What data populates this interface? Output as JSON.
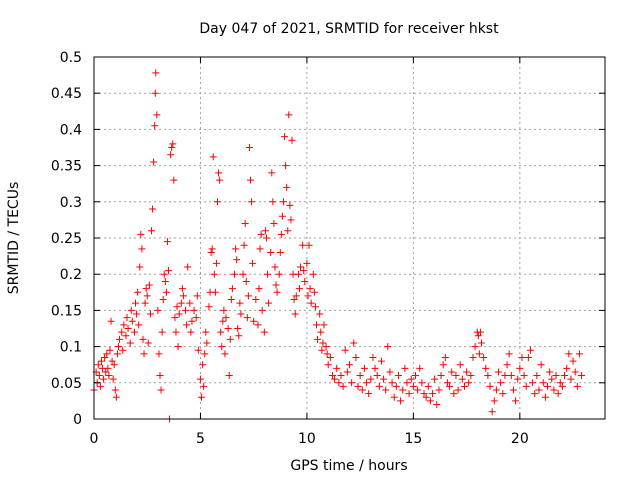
{
  "chart_data": {
    "type": "scatter",
    "title": "Day 047 of 2021, SRMTID for receiver hkst",
    "xlabel": "GPS time / hours",
    "ylabel": "SRMTID / TECUs",
    "xlim": [
      0,
      24
    ],
    "ylim": [
      0,
      0.5
    ],
    "xticks": [
      0,
      5,
      10,
      15,
      20
    ],
    "yticks": [
      0,
      0.05,
      0.1,
      0.15,
      0.2,
      0.25,
      0.3,
      0.35,
      0.4,
      0.45,
      0.5
    ],
    "grid": true,
    "marker": "+",
    "color": "#ff0000",
    "series": [
      {
        "name": "SRMTID",
        "points": [
          [
            0.0,
            0.04
          ],
          [
            0.1,
            0.065
          ],
          [
            0.15,
            0.05
          ],
          [
            0.2,
            0.075
          ],
          [
            0.25,
            0.06
          ],
          [
            0.3,
            0.045
          ],
          [
            0.35,
            0.08
          ],
          [
            0.4,
            0.07
          ],
          [
            0.45,
            0.055
          ],
          [
            0.5,
            0.085
          ],
          [
            0.55,
            0.065
          ],
          [
            0.6,
            0.09
          ],
          [
            0.65,
            0.07
          ],
          [
            0.7,
            0.06
          ],
          [
            0.75,
            0.095
          ],
          [
            0.8,
            0.135
          ],
          [
            0.85,
            0.08
          ],
          [
            0.9,
            0.055
          ],
          [
            0.95,
            0.075
          ],
          [
            1.0,
            0.04
          ],
          [
            1.05,
            0.03
          ],
          [
            1.1,
            0.09
          ],
          [
            1.15,
            0.1
          ],
          [
            1.2,
            0.11
          ],
          [
            1.3,
            0.12
          ],
          [
            1.35,
            0.095
          ],
          [
            1.4,
            0.13
          ],
          [
            1.5,
            0.115
          ],
          [
            1.55,
            0.14
          ],
          [
            1.6,
            0.125
          ],
          [
            1.7,
            0.105
          ],
          [
            1.75,
            0.15
          ],
          [
            1.8,
            0.135
          ],
          [
            1.9,
            0.12
          ],
          [
            1.95,
            0.16
          ],
          [
            2.0,
            0.145
          ],
          [
            2.05,
            0.175
          ],
          [
            2.1,
            0.13
          ],
          [
            2.15,
            0.21
          ],
          [
            2.2,
            0.255
          ],
          [
            2.25,
            0.235
          ],
          [
            2.3,
            0.11
          ],
          [
            2.35,
            0.09
          ],
          [
            2.4,
            0.16
          ],
          [
            2.45,
            0.18
          ],
          [
            2.5,
            0.17
          ],
          [
            2.55,
            0.105
          ],
          [
            2.6,
            0.185
          ],
          [
            2.65,
            0.145
          ],
          [
            2.7,
            0.26
          ],
          [
            2.75,
            0.29
          ],
          [
            2.8,
            0.355
          ],
          [
            2.85,
            0.405
          ],
          [
            2.88,
            0.45
          ],
          [
            2.9,
            0.478
          ],
          [
            2.95,
            0.42
          ],
          [
            3.0,
            0.15
          ],
          [
            3.05,
            0.09
          ],
          [
            3.1,
            0.06
          ],
          [
            3.15,
            0.04
          ],
          [
            3.2,
            0.12
          ],
          [
            3.25,
            0.165
          ],
          [
            3.3,
            0.2
          ],
          [
            3.35,
            0.19
          ],
          [
            3.4,
            0.175
          ],
          [
            3.45,
            0.245
          ],
          [
            3.5,
            0.205
          ],
          [
            3.55,
            0.0
          ],
          [
            3.6,
            0.365
          ],
          [
            3.65,
            0.375
          ],
          [
            3.7,
            0.38
          ],
          [
            3.75,
            0.33
          ],
          [
            3.8,
            0.14
          ],
          [
            3.85,
            0.12
          ],
          [
            3.9,
            0.155
          ],
          [
            3.95,
            0.1
          ],
          [
            4.0,
            0.145
          ],
          [
            4.1,
            0.16
          ],
          [
            4.15,
            0.18
          ],
          [
            4.2,
            0.17
          ],
          [
            4.3,
            0.15
          ],
          [
            4.35,
            0.13
          ],
          [
            4.4,
            0.21
          ],
          [
            4.5,
            0.16
          ],
          [
            4.55,
            0.12
          ],
          [
            4.6,
            0.135
          ],
          [
            4.7,
            0.15
          ],
          [
            4.8,
            0.14
          ],
          [
            4.85,
            0.17
          ],
          [
            4.9,
            0.095
          ],
          [
            5.0,
            0.055
          ],
          [
            5.05,
            0.03
          ],
          [
            5.1,
            0.075
          ],
          [
            5.15,
            0.045
          ],
          [
            5.2,
            0.09
          ],
          [
            5.25,
            0.12
          ],
          [
            5.3,
            0.105
          ],
          [
            5.4,
            0.155
          ],
          [
            5.45,
            0.175
          ],
          [
            5.5,
            0.23
          ],
          [
            5.55,
            0.235
          ],
          [
            5.6,
            0.362
          ],
          [
            5.65,
            0.2
          ],
          [
            5.7,
            0.175
          ],
          [
            5.75,
            0.215
          ],
          [
            5.8,
            0.3
          ],
          [
            5.85,
            0.34
          ],
          [
            5.9,
            0.33
          ],
          [
            5.95,
            0.12
          ],
          [
            6.0,
            0.1
          ],
          [
            6.05,
            0.135
          ],
          [
            6.1,
            0.15
          ],
          [
            6.15,
            0.09
          ],
          [
            6.2,
            0.14
          ],
          [
            6.3,
            0.125
          ],
          [
            6.35,
            0.06
          ],
          [
            6.4,
            0.11
          ],
          [
            6.45,
            0.165
          ],
          [
            6.5,
            0.18
          ],
          [
            6.6,
            0.2
          ],
          [
            6.65,
            0.235
          ],
          [
            6.7,
            0.22
          ],
          [
            6.75,
            0.125
          ],
          [
            6.8,
            0.115
          ],
          [
            6.85,
            0.16
          ],
          [
            6.9,
            0.145
          ],
          [
            7.0,
            0.2
          ],
          [
            7.05,
            0.24
          ],
          [
            7.1,
            0.27
          ],
          [
            7.15,
            0.19
          ],
          [
            7.2,
            0.14
          ],
          [
            7.25,
            0.17
          ],
          [
            7.3,
            0.375
          ],
          [
            7.35,
            0.33
          ],
          [
            7.4,
            0.3
          ],
          [
            7.45,
            0.215
          ],
          [
            7.5,
            0.135
          ],
          [
            7.6,
            0.165
          ],
          [
            7.7,
            0.13
          ],
          [
            7.75,
            0.18
          ],
          [
            7.8,
            0.235
          ],
          [
            7.85,
            0.255
          ],
          [
            7.9,
            0.15
          ],
          [
            8.0,
            0.12
          ],
          [
            8.05,
            0.26
          ],
          [
            8.1,
            0.25
          ],
          [
            8.15,
            0.2
          ],
          [
            8.2,
            0.16
          ],
          [
            8.3,
            0.23
          ],
          [
            8.35,
            0.34
          ],
          [
            8.4,
            0.3
          ],
          [
            8.45,
            0.27
          ],
          [
            8.5,
            0.21
          ],
          [
            8.55,
            0.185
          ],
          [
            8.6,
            0.175
          ],
          [
            8.7,
            0.2
          ],
          [
            8.75,
            0.23
          ],
          [
            8.8,
            0.255
          ],
          [
            8.85,
            0.28
          ],
          [
            8.9,
            0.3
          ],
          [
            8.95,
            0.39
          ],
          [
            9.0,
            0.35
          ],
          [
            9.05,
            0.32
          ],
          [
            9.1,
            0.26
          ],
          [
            9.15,
            0.42
          ],
          [
            9.2,
            0.295
          ],
          [
            9.25,
            0.275
          ],
          [
            9.3,
            0.385
          ],
          [
            9.35,
            0.2
          ],
          [
            9.4,
            0.165
          ],
          [
            9.45,
            0.145
          ],
          [
            9.5,
            0.17
          ],
          [
            9.6,
            0.2
          ],
          [
            9.65,
            0.18
          ],
          [
            9.7,
            0.21
          ],
          [
            9.8,
            0.24
          ],
          [
            9.85,
            0.205
          ],
          [
            9.9,
            0.19
          ],
          [
            10.0,
            0.215
          ],
          [
            10.05,
            0.17
          ],
          [
            10.1,
            0.24
          ],
          [
            10.15,
            0.18
          ],
          [
            10.2,
            0.16
          ],
          [
            10.3,
            0.2
          ],
          [
            10.35,
            0.175
          ],
          [
            10.4,
            0.155
          ],
          [
            10.45,
            0.13
          ],
          [
            10.5,
            0.11
          ],
          [
            10.6,
            0.145
          ],
          [
            10.65,
            0.12
          ],
          [
            10.7,
            0.095
          ],
          [
            10.75,
            0.105
          ],
          [
            10.8,
            0.13
          ],
          [
            10.9,
            0.1
          ],
          [
            10.95,
            0.09
          ],
          [
            11.0,
            0.075
          ],
          [
            11.1,
            0.085
          ],
          [
            11.2,
            0.06
          ],
          [
            11.3,
            0.055
          ],
          [
            11.4,
            0.07
          ],
          [
            11.5,
            0.05
          ],
          [
            11.6,
            0.06
          ],
          [
            11.7,
            0.045
          ],
          [
            11.8,
            0.095
          ],
          [
            11.9,
            0.065
          ],
          [
            12.0,
            0.075
          ],
          [
            12.1,
            0.05
          ],
          [
            12.2,
            0.105
          ],
          [
            12.3,
            0.085
          ],
          [
            12.4,
            0.045
          ],
          [
            12.5,
            0.06
          ],
          [
            12.6,
            0.04
          ],
          [
            12.7,
            0.07
          ],
          [
            12.8,
            0.05
          ],
          [
            12.9,
            0.035
          ],
          [
            13.0,
            0.055
          ],
          [
            13.1,
            0.085
          ],
          [
            13.2,
            0.07
          ],
          [
            13.3,
            0.06
          ],
          [
            13.4,
            0.045
          ],
          [
            13.5,
            0.08
          ],
          [
            13.6,
            0.055
          ],
          [
            13.7,
            0.04
          ],
          [
            13.8,
            0.1
          ],
          [
            13.9,
            0.065
          ],
          [
            14.0,
            0.05
          ],
          [
            14.1,
            0.03
          ],
          [
            14.2,
            0.045
          ],
          [
            14.3,
            0.06
          ],
          [
            14.4,
            0.025
          ],
          [
            14.5,
            0.04
          ],
          [
            14.6,
            0.07
          ],
          [
            14.7,
            0.05
          ],
          [
            14.8,
            0.035
          ],
          [
            14.9,
            0.055
          ],
          [
            15.0,
            0.045
          ],
          [
            15.1,
            0.06
          ],
          [
            15.2,
            0.04
          ],
          [
            15.3,
            0.07
          ],
          [
            15.4,
            0.05
          ],
          [
            15.5,
            0.035
          ],
          [
            15.6,
            0.03
          ],
          [
            15.7,
            0.045
          ],
          [
            15.8,
            0.025
          ],
          [
            15.9,
            0.035
          ],
          [
            16.0,
            0.055
          ],
          [
            16.1,
            0.02
          ],
          [
            16.2,
            0.04
          ],
          [
            16.3,
            0.06
          ],
          [
            16.4,
            0.075
          ],
          [
            16.5,
            0.085
          ],
          [
            16.6,
            0.05
          ],
          [
            16.7,
            0.045
          ],
          [
            16.8,
            0.065
          ],
          [
            16.9,
            0.035
          ],
          [
            17.0,
            0.06
          ],
          [
            17.1,
            0.04
          ],
          [
            17.2,
            0.075
          ],
          [
            17.3,
            0.055
          ],
          [
            17.4,
            0.045
          ],
          [
            17.5,
            0.065
          ],
          [
            17.6,
            0.05
          ],
          [
            17.7,
            0.06
          ],
          [
            17.8,
            0.085
          ],
          [
            17.9,
            0.1
          ],
          [
            18.0,
            0.12
          ],
          [
            18.05,
            0.115
          ],
          [
            18.1,
            0.09
          ],
          [
            18.15,
            0.12
          ],
          [
            18.2,
            0.105
          ],
          [
            18.3,
            0.085
          ],
          [
            18.4,
            0.07
          ],
          [
            18.5,
            0.06
          ],
          [
            18.6,
            0.045
          ],
          [
            18.7,
            0.01
          ],
          [
            18.8,
            0.025
          ],
          [
            18.9,
            0.04
          ],
          [
            19.0,
            0.065
          ],
          [
            19.1,
            0.05
          ],
          [
            19.2,
            0.035
          ],
          [
            19.3,
            0.06
          ],
          [
            19.4,
            0.075
          ],
          [
            19.5,
            0.09
          ],
          [
            19.6,
            0.06
          ],
          [
            19.7,
            0.04
          ],
          [
            19.8,
            0.025
          ],
          [
            19.9,
            0.055
          ],
          [
            20.0,
            0.07
          ],
          [
            20.1,
            0.085
          ],
          [
            20.2,
            0.06
          ],
          [
            20.3,
            0.045
          ],
          [
            20.4,
            0.085
          ],
          [
            20.5,
            0.095
          ],
          [
            20.6,
            0.05
          ],
          [
            20.7,
            0.035
          ],
          [
            20.8,
            0.06
          ],
          [
            20.9,
            0.04
          ],
          [
            21.0,
            0.075
          ],
          [
            21.1,
            0.05
          ],
          [
            21.2,
            0.03
          ],
          [
            21.3,
            0.045
          ],
          [
            21.4,
            0.065
          ],
          [
            21.5,
            0.055
          ],
          [
            21.6,
            0.04
          ],
          [
            21.7,
            0.06
          ],
          [
            21.8,
            0.035
          ],
          [
            21.9,
            0.05
          ],
          [
            22.0,
            0.045
          ],
          [
            22.1,
            0.06
          ],
          [
            22.2,
            0.07
          ],
          [
            22.3,
            0.09
          ],
          [
            22.4,
            0.055
          ],
          [
            22.5,
            0.08
          ],
          [
            22.6,
            0.065
          ],
          [
            22.7,
            0.045
          ],
          [
            22.8,
            0.09
          ],
          [
            22.9,
            0.06
          ]
        ]
      }
    ]
  }
}
